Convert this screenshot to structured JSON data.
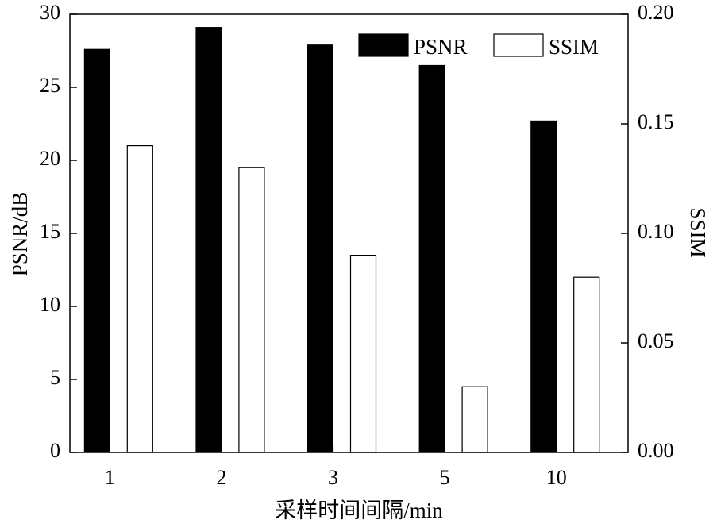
{
  "chart_data": {
    "type": "bar",
    "categories": [
      "1",
      "2",
      "3",
      "5",
      "10"
    ],
    "series": [
      {
        "name": "PSNR",
        "axis": "left",
        "values": [
          27.6,
          29.1,
          27.9,
          26.5,
          22.7
        ],
        "color": "#000000"
      },
      {
        "name": "SSIM",
        "axis": "right",
        "values": [
          0.14,
          0.13,
          0.09,
          0.03,
          0.08
        ],
        "color": "#ffffff"
      }
    ],
    "xlabel": "采样时间间隔/min",
    "ylabel": "PSNR/dB",
    "y2label": "SSIM",
    "ylim": [
      0,
      30
    ],
    "y2lim": [
      0,
      0.2
    ],
    "yticks": [
      "0",
      "5",
      "10",
      "15",
      "20",
      "25",
      "30"
    ],
    "y2ticks": [
      "0.00",
      "0.05",
      "0.10",
      "0.15",
      "0.20"
    ],
    "legend": {
      "position": "top-right",
      "entries": [
        "PSNR",
        "SSIM"
      ]
    },
    "grid": false
  }
}
